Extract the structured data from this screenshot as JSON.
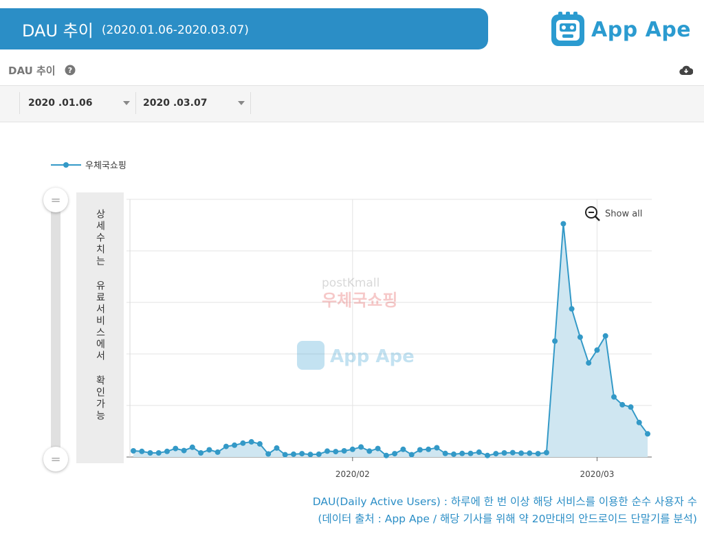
{
  "banner": {
    "title": "DAU 추이",
    "range": "(2020.01.06-2020.03.07)"
  },
  "logo": {
    "text": "App Ape"
  },
  "panel": {
    "title": "DAU 추이",
    "help_icon": "question-circle-icon",
    "download_icon": "cloud-download-icon"
  },
  "filters": {
    "start_date": "2020 .01.06",
    "end_date": "2020 .03.07"
  },
  "info": {
    "text": "상세수치는 유료서비스에서 확인가능"
  },
  "show_all": {
    "label": "Show all",
    "icon": "zoom-out-icon"
  },
  "watermark": {
    "brand": "postKmall",
    "sub": "우체국쇼핑"
  },
  "colors": {
    "accent": "#2b8ec6",
    "series_line": "#3399c7",
    "series_fill": "#cfe6f1"
  },
  "footer": {
    "line1": "DAU(Daily Active Users) : 하루에 한 번 이상 해당 서비스를 이용한 순수 사용자 수",
    "line2": "(데이터 출처 : App Ape / 해당 기사를 위해 약 20만대의 안드로이드 단말기를 분석)"
  },
  "chart_data": {
    "type": "area",
    "legend": [
      "우체국쇼핑"
    ],
    "x_start": "2020-01-06",
    "x_end": "2020-03-07",
    "x_ticks": [
      "2020/02",
      "2020/03"
    ],
    "y_ticks_labeled": false,
    "grid": true,
    "series": [
      {
        "name": "우체국쇼핑",
        "values": [
          2.4,
          2.2,
          1.6,
          1.6,
          2.2,
          3.3,
          2.5,
          3.8,
          1.6,
          2.8,
          1.9,
          4.1,
          4.6,
          5.4,
          5.9,
          5.1,
          1.2,
          3.5,
          0.9,
          1.1,
          1.3,
          1.0,
          1.1,
          2.3,
          2.1,
          2.4,
          3.0,
          3.9,
          2.3,
          3.3,
          0.6,
          1.3,
          3.0,
          0.9,
          2.8,
          3.0,
          3.6,
          1.4,
          1.1,
          1.4,
          1.4,
          1.9,
          0.6,
          1.3,
          1.6,
          1.7,
          1.5,
          1.5,
          1.3,
          1.7,
          45.0,
          90.5,
          57.5,
          46.5,
          36.5,
          41.5,
          47.0,
          23.3,
          20.3,
          19.4,
          13.4,
          9.0
        ]
      }
    ]
  }
}
